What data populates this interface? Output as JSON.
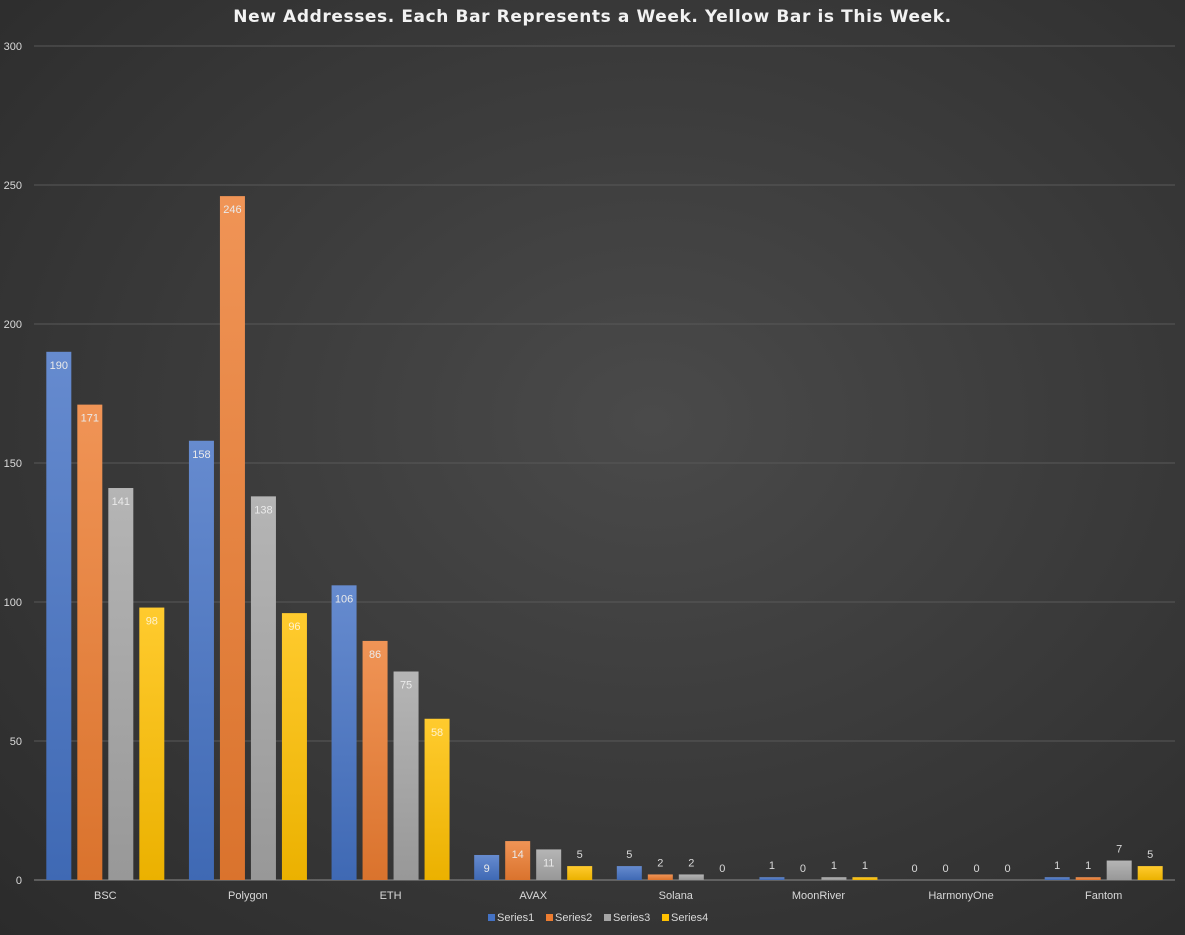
{
  "chart_data": {
    "type": "bar",
    "title": "New Addresses. Each Bar Represents a Week. Yellow Bar is This Week.",
    "categories": [
      "BSC",
      "Polygon",
      "ETH",
      "AVAX",
      "Solana",
      "MoonRiver",
      "HarmonyOne",
      "Fantom"
    ],
    "series": [
      {
        "name": "Series1",
        "color": "#4472c4",
        "values": [
          190,
          158,
          106,
          9,
          5,
          1,
          0,
          1
        ]
      },
      {
        "name": "Series2",
        "color": "#ed7d31",
        "values": [
          171,
          246,
          86,
          14,
          2,
          0,
          0,
          1
        ]
      },
      {
        "name": "Series3",
        "color": "#a5a5a5",
        "values": [
          141,
          138,
          75,
          11,
          2,
          1,
          0,
          7
        ]
      },
      {
        "name": "Series4",
        "color": "#ffc000",
        "values": [
          98,
          96,
          58,
          5,
          0,
          1,
          0,
          5
        ]
      }
    ],
    "ylim": [
      0,
      300
    ],
    "yticks": [
      "0",
      "50",
      "100",
      "150",
      "200",
      "250",
      "300"
    ],
    "grid": true,
    "legend_position": "bottom",
    "xlabel": "",
    "ylabel": ""
  }
}
